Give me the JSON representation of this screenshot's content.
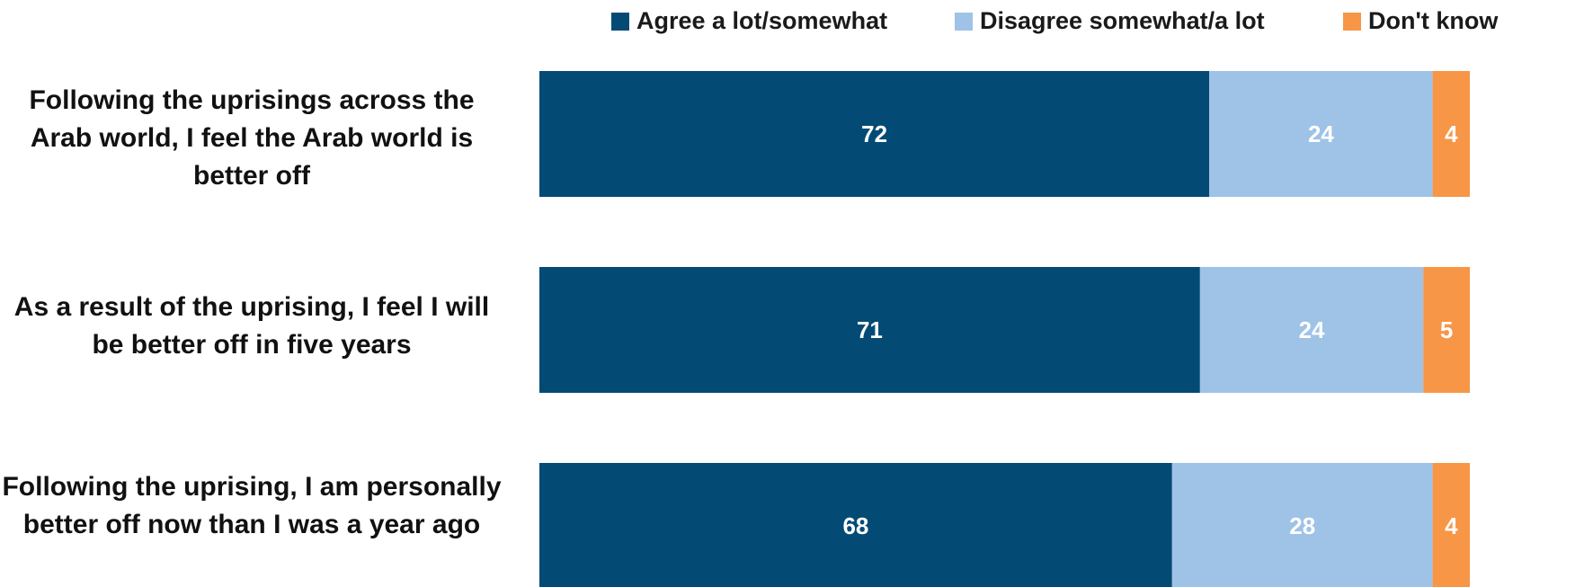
{
  "chart_data": {
    "type": "bar",
    "orientation": "horizontal",
    "stacked": true,
    "title": "",
    "xlabel": "",
    "ylabel": "",
    "xlim": [
      0,
      100
    ],
    "grid": false,
    "legend_position": "top",
    "categories": [
      "Following the uprisings across  the Arab world, I feel the Arab world is better off",
      "As a result of the uprising, I feel I will be better off in five years",
      "Following the uprising, I am personally better off now than I was a year ago"
    ],
    "series": [
      {
        "name": "Agree a lot/somewhat",
        "color": "#034b75",
        "values": [
          72,
          71,
          68
        ]
      },
      {
        "name": "Disagree somewhat/a lot",
        "color": "#9fc2e7",
        "values": [
          24,
          24,
          28
        ]
      },
      {
        "name": "Don't know",
        "color": "#f79646",
        "values": [
          4,
          5,
          4
        ]
      }
    ]
  }
}
